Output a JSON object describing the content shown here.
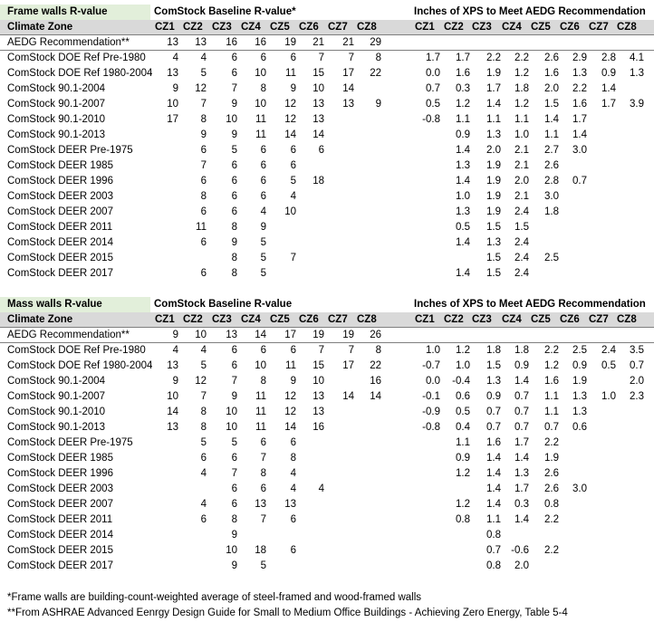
{
  "headers": {
    "baseline": "ComStock Baseline R-value",
    "baseline_frame": "ComStock Baseline R-value*",
    "xps": "Inches of XPS to Meet AEDG Recommendation",
    "climate_zone": "Climate Zone",
    "cz": [
      "CZ1",
      "CZ2",
      "CZ3",
      "CZ4",
      "CZ5",
      "CZ6",
      "CZ7",
      "CZ8"
    ]
  },
  "frame": {
    "title": "Frame walls R-value",
    "rows": [
      {
        "label": "AEDG Recommendation**",
        "r": [
          "13",
          "13",
          "16",
          "16",
          "19",
          "21",
          "21",
          "29"
        ],
        "x": [
          "",
          "",
          "",
          "",
          "",
          "",
          "",
          ""
        ]
      },
      {
        "label": "ComStock DOE Ref Pre-1980",
        "r": [
          "4",
          "4",
          "6",
          "6",
          "6",
          "7",
          "7",
          "8"
        ],
        "x": [
          "1.7",
          "1.7",
          "2.2",
          "2.2",
          "2.6",
          "2.9",
          "2.8",
          "4.1"
        ]
      },
      {
        "label": "ComStock DOE Ref 1980-2004",
        "r": [
          "13",
          "5",
          "6",
          "10",
          "11",
          "15",
          "17",
          "22"
        ],
        "x": [
          "0.0",
          "1.6",
          "1.9",
          "1.2",
          "1.6",
          "1.3",
          "0.9",
          "1.3"
        ]
      },
      {
        "label": "ComStock 90.1-2004",
        "r": [
          "9",
          "12",
          "7",
          "8",
          "9",
          "10",
          "14",
          ""
        ],
        "x": [
          "0.7",
          "0.3",
          "1.7",
          "1.8",
          "2.0",
          "2.2",
          "1.4",
          ""
        ]
      },
      {
        "label": "ComStock 90.1-2007",
        "r": [
          "10",
          "7",
          "9",
          "10",
          "12",
          "13",
          "13",
          "9"
        ],
        "x": [
          "0.5",
          "1.2",
          "1.4",
          "1.2",
          "1.5",
          "1.6",
          "1.7",
          "3.9"
        ]
      },
      {
        "label": "ComStock 90.1-2010",
        "r": [
          "17",
          "8",
          "10",
          "11",
          "12",
          "13",
          "",
          ""
        ],
        "x": [
          "-0.8",
          "1.1",
          "1.1",
          "1.1",
          "1.4",
          "1.7",
          "",
          ""
        ]
      },
      {
        "label": "ComStock 90.1-2013",
        "r": [
          "",
          "9",
          "9",
          "11",
          "14",
          "14",
          "",
          ""
        ],
        "x": [
          "",
          "0.9",
          "1.3",
          "1.0",
          "1.1",
          "1.4",
          "",
          ""
        ]
      },
      {
        "label": "ComStock DEER Pre-1975",
        "r": [
          "",
          "6",
          "5",
          "6",
          "6",
          "6",
          "",
          ""
        ],
        "x": [
          "",
          "1.4",
          "2.0",
          "2.1",
          "2.7",
          "3.0",
          "",
          ""
        ]
      },
      {
        "label": "ComStock DEER 1985",
        "r": [
          "",
          "7",
          "6",
          "6",
          "6",
          "",
          "",
          ""
        ],
        "x": [
          "",
          "1.3",
          "1.9",
          "2.1",
          "2.6",
          "",
          "",
          ""
        ]
      },
      {
        "label": "ComStock DEER 1996",
        "r": [
          "",
          "6",
          "6",
          "6",
          "5",
          "18",
          "",
          ""
        ],
        "x": [
          "",
          "1.4",
          "1.9",
          "2.0",
          "2.8",
          "0.7",
          "",
          ""
        ]
      },
      {
        "label": "ComStock DEER 2003",
        "r": [
          "",
          "8",
          "6",
          "6",
          "4",
          "",
          "",
          ""
        ],
        "x": [
          "",
          "1.0",
          "1.9",
          "2.1",
          "3.0",
          "",
          "",
          ""
        ]
      },
      {
        "label": "ComStock DEER 2007",
        "r": [
          "",
          "6",
          "6",
          "4",
          "10",
          "",
          "",
          ""
        ],
        "x": [
          "",
          "1.3",
          "1.9",
          "2.4",
          "1.8",
          "",
          "",
          ""
        ]
      },
      {
        "label": "ComStock DEER 2011",
        "r": [
          "",
          "11",
          "8",
          "9",
          "",
          "",
          "",
          ""
        ],
        "x": [
          "",
          "0.5",
          "1.5",
          "1.5",
          "",
          "",
          "",
          ""
        ]
      },
      {
        "label": "ComStock DEER 2014",
        "r": [
          "",
          "6",
          "9",
          "5",
          "",
          "",
          "",
          ""
        ],
        "x": [
          "",
          "1.4",
          "1.3",
          "2.4",
          "",
          "",
          "",
          ""
        ]
      },
      {
        "label": "ComStock DEER 2015",
        "r": [
          "",
          "",
          "8",
          "5",
          "7",
          "",
          "",
          ""
        ],
        "x": [
          "",
          "",
          "1.5",
          "2.4",
          "2.5",
          "",
          "",
          ""
        ]
      },
      {
        "label": "ComStock DEER 2017",
        "r": [
          "",
          "6",
          "8",
          "5",
          "",
          "",
          "",
          ""
        ],
        "x": [
          "",
          "1.4",
          "1.5",
          "2.4",
          "",
          "",
          "",
          ""
        ]
      }
    ]
  },
  "mass": {
    "title": "Mass walls R-value",
    "rows": [
      {
        "label": "AEDG Recommendation**",
        "r": [
          "9",
          "10",
          "13",
          "14",
          "17",
          "19",
          "19",
          "26"
        ],
        "x": [
          "",
          "",
          "",
          "",
          "",
          "",
          "",
          ""
        ]
      },
      {
        "label": "ComStock DOE Ref Pre-1980",
        "r": [
          "4",
          "4",
          "6",
          "6",
          "6",
          "7",
          "7",
          "8"
        ],
        "x": [
          "1.0",
          "1.2",
          "1.8",
          "1.8",
          "2.2",
          "2.5",
          "2.4",
          "3.5"
        ]
      },
      {
        "label": "ComStock DOE Ref 1980-2004",
        "r": [
          "13",
          "5",
          "6",
          "10",
          "11",
          "15",
          "17",
          "22"
        ],
        "x": [
          "-0.7",
          "1.0",
          "1.5",
          "0.9",
          "1.2",
          "0.9",
          "0.5",
          "0.7"
        ]
      },
      {
        "label": "ComStock 90.1-2004",
        "r": [
          "9",
          "12",
          "7",
          "8",
          "9",
          "10",
          "",
          "16"
        ],
        "x": [
          "0.0",
          "-0.4",
          "1.3",
          "1.4",
          "1.6",
          "1.9",
          "",
          "2.0"
        ]
      },
      {
        "label": "ComStock 90.1-2007",
        "r": [
          "10",
          "7",
          "9",
          "11",
          "12",
          "13",
          "14",
          "14"
        ],
        "x": [
          "-0.1",
          "0.6",
          "0.9",
          "0.7",
          "1.1",
          "1.3",
          "1.0",
          "2.3"
        ]
      },
      {
        "label": "ComStock 90.1-2010",
        "r": [
          "14",
          "8",
          "10",
          "11",
          "12",
          "13",
          "",
          ""
        ],
        "x": [
          "-0.9",
          "0.5",
          "0.7",
          "0.7",
          "1.1",
          "1.3",
          "",
          ""
        ]
      },
      {
        "label": "ComStock 90.1-2013",
        "r": [
          "13",
          "8",
          "10",
          "11",
          "14",
          "16",
          "",
          ""
        ],
        "x": [
          "-0.8",
          "0.4",
          "0.7",
          "0.7",
          "0.7",
          "0.6",
          "",
          ""
        ]
      },
      {
        "label": "ComStock DEER Pre-1975",
        "r": [
          "",
          "5",
          "5",
          "6",
          "6",
          "",
          "",
          ""
        ],
        "x": [
          "",
          "1.1",
          "1.6",
          "1.7",
          "2.2",
          "",
          "",
          ""
        ]
      },
      {
        "label": "ComStock DEER 1985",
        "r": [
          "",
          "6",
          "6",
          "7",
          "8",
          "",
          "",
          ""
        ],
        "x": [
          "",
          "0.9",
          "1.4",
          "1.4",
          "1.9",
          "",
          "",
          ""
        ]
      },
      {
        "label": "ComStock DEER 1996",
        "r": [
          "",
          "4",
          "7",
          "8",
          "4",
          "",
          "",
          ""
        ],
        "x": [
          "",
          "1.2",
          "1.4",
          "1.3",
          "2.6",
          "",
          "",
          ""
        ]
      },
      {
        "label": "ComStock DEER 2003",
        "r": [
          "",
          "",
          "6",
          "6",
          "4",
          "4",
          "",
          ""
        ],
        "x": [
          "",
          "",
          "1.4",
          "1.7",
          "2.6",
          "3.0",
          "",
          ""
        ]
      },
      {
        "label": "ComStock DEER 2007",
        "r": [
          "",
          "4",
          "6",
          "13",
          "13",
          "",
          "",
          ""
        ],
        "x": [
          "",
          "1.2",
          "1.4",
          "0.3",
          "0.8",
          "",
          "",
          ""
        ]
      },
      {
        "label": "ComStock DEER 2011",
        "r": [
          "",
          "6",
          "8",
          "7",
          "6",
          "",
          "",
          ""
        ],
        "x": [
          "",
          "0.8",
          "1.1",
          "1.4",
          "2.2",
          "",
          "",
          ""
        ]
      },
      {
        "label": "ComStock DEER 2014",
        "r": [
          "",
          "",
          "9",
          "",
          "",
          "",
          "",
          ""
        ],
        "x": [
          "",
          "",
          "0.8",
          "",
          "",
          "",
          "",
          ""
        ]
      },
      {
        "label": "ComStock DEER 2015",
        "r": [
          "",
          "",
          "10",
          "18",
          "6",
          "",
          "",
          ""
        ],
        "x": [
          "",
          "",
          "0.7",
          "-0.6",
          "2.2",
          "",
          "",
          ""
        ]
      },
      {
        "label": "ComStock DEER 2017",
        "r": [
          "",
          "",
          "9",
          "5",
          "",
          "",
          "",
          ""
        ],
        "x": [
          "",
          "",
          "0.8",
          "2.0",
          "",
          "",
          "",
          ""
        ]
      }
    ]
  },
  "notes": [
    "*Frame walls are building-count-weighted average of steel-framed and wood-framed walls",
    "**From ASHRAE Advanced Eenrgy Design Guide for Small to Medium Office Buildings - Achieving Zero Energy, Table 5-4"
  ],
  "colors": {
    "title_highlight": "#e2efda",
    "header_band": "#d9d9d9",
    "rule": "#7f7f7f"
  }
}
